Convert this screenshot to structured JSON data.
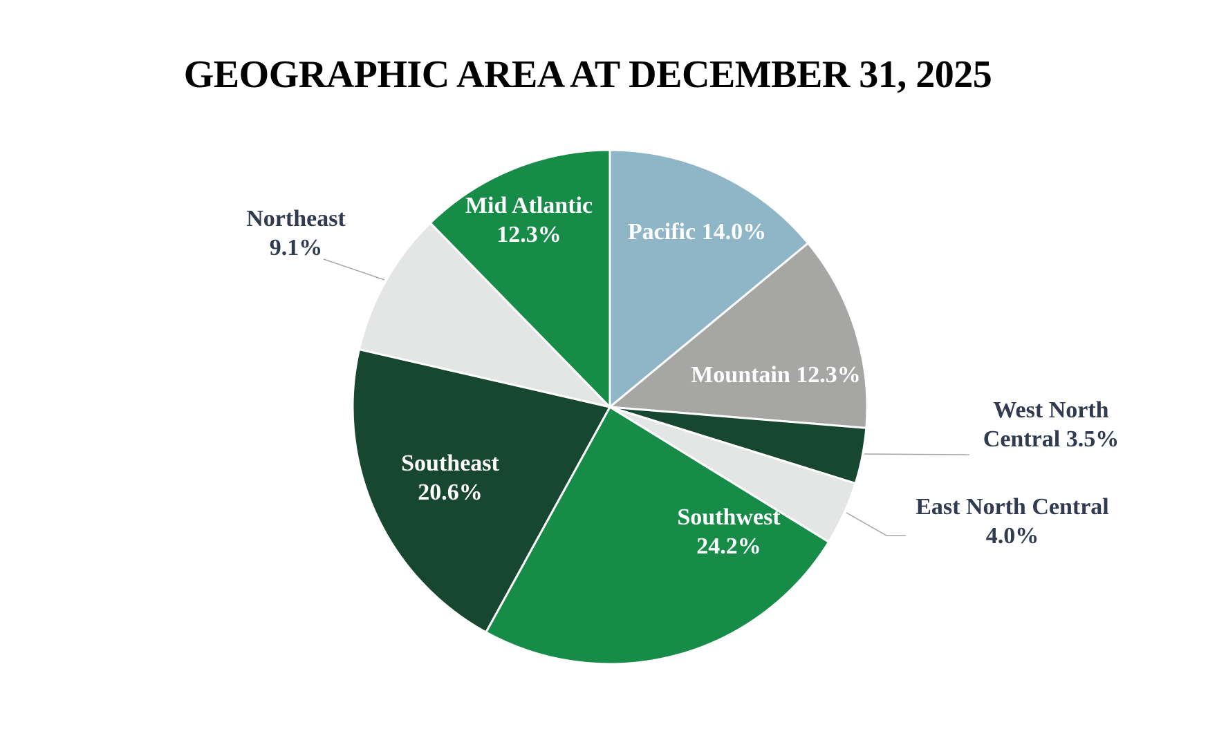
{
  "chart_data": {
    "type": "pie",
    "title": "GEOGRAPHIC AREA AT DECEMBER 31, 2025",
    "legend": "none",
    "slices": [
      {
        "label": "Pacific",
        "value": 14.0,
        "value_label": "14.0%",
        "color": "#8fb6c7",
        "text_color": "#ffffff",
        "label_position": "inside"
      },
      {
        "label": "Mountain",
        "value": 12.3,
        "value_label": "12.3%",
        "color": "#a6a6a4",
        "text_color": "#ffffff",
        "label_position": "inside"
      },
      {
        "label": "West North Central",
        "value": 3.5,
        "value_label": "3.5%",
        "color": "#174631",
        "text_color": "#313b4f",
        "label_position": "outside"
      },
      {
        "label": "East North Central",
        "value": 4.0,
        "value_label": "4.0%",
        "color": "#e4e6e6",
        "text_color": "#313b4f",
        "label_position": "outside"
      },
      {
        "label": "Southwest",
        "value": 24.2,
        "value_label": "24.2%",
        "color": "#168c48",
        "text_color": "#ffffff",
        "label_position": "inside"
      },
      {
        "label": "Southeast",
        "value": 20.6,
        "value_label": "20.6%",
        "color": "#174631",
        "text_color": "#ffffff",
        "label_position": "inside"
      },
      {
        "label": "Northeast",
        "value": 9.1,
        "value_label": "9.1%",
        "color": "#e4e6e6",
        "text_color": "#313b4f",
        "label_position": "outside"
      },
      {
        "label": "Mid Atlantic",
        "value": 12.3,
        "value_label": "12.3%",
        "color": "#168c48",
        "text_color": "#ffffff",
        "label_position": "inside"
      }
    ]
  }
}
